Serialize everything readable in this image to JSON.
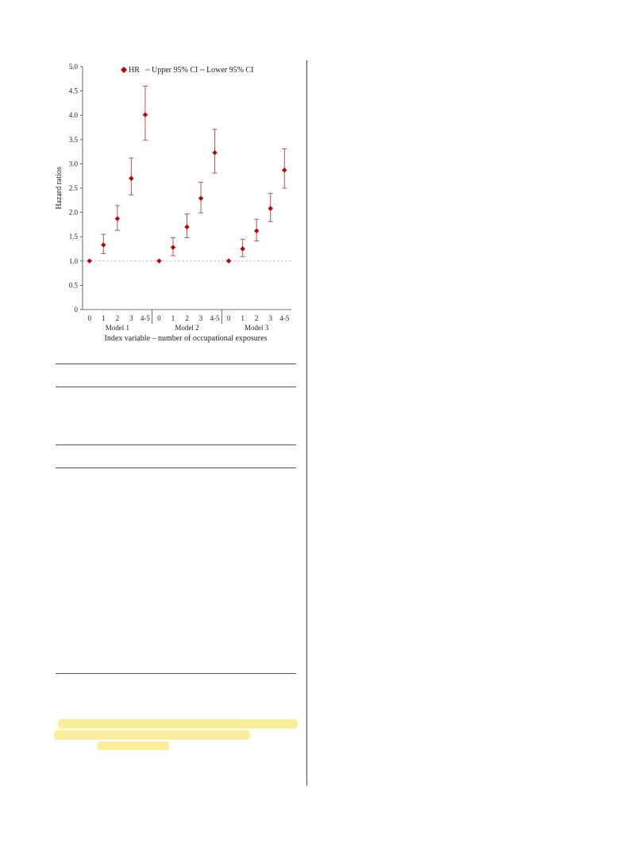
{
  "chart_data": {
    "type": "scatter",
    "ylabel": "Hazard ratios",
    "xlabel": "Index variable – number of occupational exposures",
    "ylim": [
      0,
      5.0
    ],
    "yticks": [
      "0",
      "0.5",
      "1.0",
      "1.5",
      "2.0",
      "2.5",
      "3.0",
      "3.5",
      "4.0",
      "4.5",
      "5.0"
    ],
    "reference_line": 1.0,
    "legend": {
      "placement": "top",
      "entries": [
        "HR",
        "Upper 95% CI",
        "Lower 95% CI"
      ]
    },
    "colors": {
      "marker": "#c00000",
      "errorbar": "#c0504d",
      "reference": "#bfbfbf"
    },
    "groups": [
      {
        "name": "Model 1",
        "categories": [
          "0",
          "1",
          "2",
          "3",
          "4-5"
        ],
        "hr": [
          1.0,
          1.33,
          1.87,
          2.7,
          4.01
        ],
        "upper": [
          1.0,
          1.55,
          2.14,
          3.12,
          4.6
        ],
        "lower": [
          1.0,
          1.15,
          1.63,
          2.36,
          3.49
        ]
      },
      {
        "name": "Model 2",
        "categories": [
          "0",
          "1",
          "2",
          "3",
          "4-5"
        ],
        "hr": [
          1.0,
          1.28,
          1.7,
          2.29,
          3.23
        ],
        "upper": [
          1.0,
          1.48,
          1.97,
          2.62,
          3.71
        ],
        "lower": [
          1.0,
          1.11,
          1.48,
          1.99,
          2.81
        ]
      },
      {
        "name": "Model 3",
        "categories": [
          "0",
          "1",
          "2",
          "3",
          "4-5"
        ],
        "hr": [
          1.0,
          1.25,
          1.62,
          2.08,
          2.87
        ],
        "upper": [
          1.0,
          1.45,
          1.86,
          2.39,
          3.31
        ],
        "lower": [
          1.0,
          1.09,
          1.41,
          1.81,
          2.5
        ]
      }
    ]
  }
}
